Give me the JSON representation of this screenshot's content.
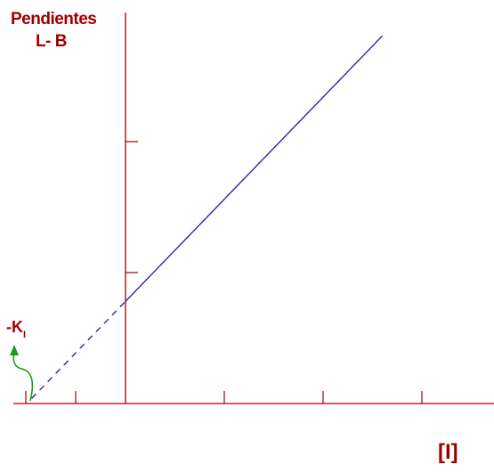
{
  "chart_data": {
    "type": "line",
    "ylabel_line1": "Pendientes",
    "ylabel_line2": "L- B",
    "xlabel": "[I]",
    "intercept_label": {
      "main": "-K",
      "sub": "I"
    },
    "x_ticks": 5,
    "y_ticks": 2,
    "xlim": [
      -1,
      3.5
    ],
    "ylim": [
      0,
      3.2
    ],
    "line": {
      "slope": 0.78,
      "intercept": 0.78,
      "x_start": 0,
      "x_end": 2.6
    },
    "extrapolation": {
      "x_start": -0.95,
      "x_end": 0
    },
    "colors": {
      "axis": "#a00000",
      "line": "#1a1aa0",
      "arrow": "#1a9a1a",
      "label": "#a00000"
    }
  }
}
